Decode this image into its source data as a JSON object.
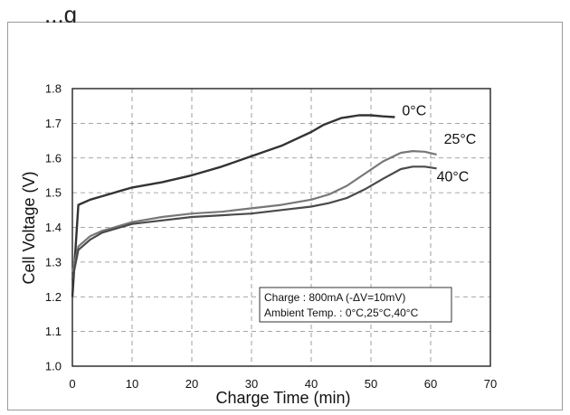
{
  "header": {
    "cut_title": "...g"
  },
  "chart_data": {
    "type": "line",
    "xlabel": "Charge Time (min)",
    "ylabel": "Cell Voltage (V)",
    "xlim": [
      0,
      70
    ],
    "ylim": [
      1.0,
      1.8
    ],
    "x_ticks": [
      "0",
      "10",
      "20",
      "30",
      "40",
      "50",
      "60",
      "70"
    ],
    "y_ticks": [
      "1.0",
      "1.1",
      "1.2",
      "1.3",
      "1.4",
      "1.5",
      "1.6",
      "1.7",
      "1.8"
    ],
    "grid": "dashed",
    "series": [
      {
        "name": "0°C",
        "color": "#333333",
        "x": [
          0,
          1,
          3,
          5,
          8,
          10,
          15,
          20,
          25,
          30,
          35,
          40,
          42,
          45,
          48,
          50,
          52,
          54
        ],
        "y": [
          1.2,
          1.465,
          1.48,
          1.49,
          1.505,
          1.515,
          1.53,
          1.55,
          1.575,
          1.605,
          1.635,
          1.675,
          1.695,
          1.715,
          1.723,
          1.723,
          1.72,
          1.718
        ]
      },
      {
        "name": "25°C",
        "color": "#777777",
        "x": [
          0,
          1,
          3,
          5,
          8,
          10,
          15,
          20,
          25,
          30,
          35,
          40,
          43,
          46,
          49,
          52,
          55,
          57,
          59,
          61
        ],
        "y": [
          1.27,
          1.345,
          1.375,
          1.39,
          1.405,
          1.415,
          1.43,
          1.44,
          1.445,
          1.455,
          1.465,
          1.48,
          1.495,
          1.52,
          1.555,
          1.59,
          1.615,
          1.62,
          1.618,
          1.61
        ]
      },
      {
        "name": "40°C",
        "color": "#4a4a4a",
        "x": [
          0,
          1,
          3,
          5,
          8,
          10,
          15,
          20,
          25,
          30,
          35,
          40,
          43,
          46,
          49,
          52,
          55,
          57,
          59,
          61
        ],
        "y": [
          1.25,
          1.335,
          1.365,
          1.385,
          1.4,
          1.41,
          1.42,
          1.43,
          1.435,
          1.44,
          1.45,
          1.46,
          1.47,
          1.485,
          1.51,
          1.54,
          1.568,
          1.575,
          1.575,
          1.57
        ]
      }
    ],
    "annotation": [
      "Charge : 800mA (-ΔV=10mV)",
      "Ambient Temp. : 0°C,25°C,40°C"
    ]
  }
}
